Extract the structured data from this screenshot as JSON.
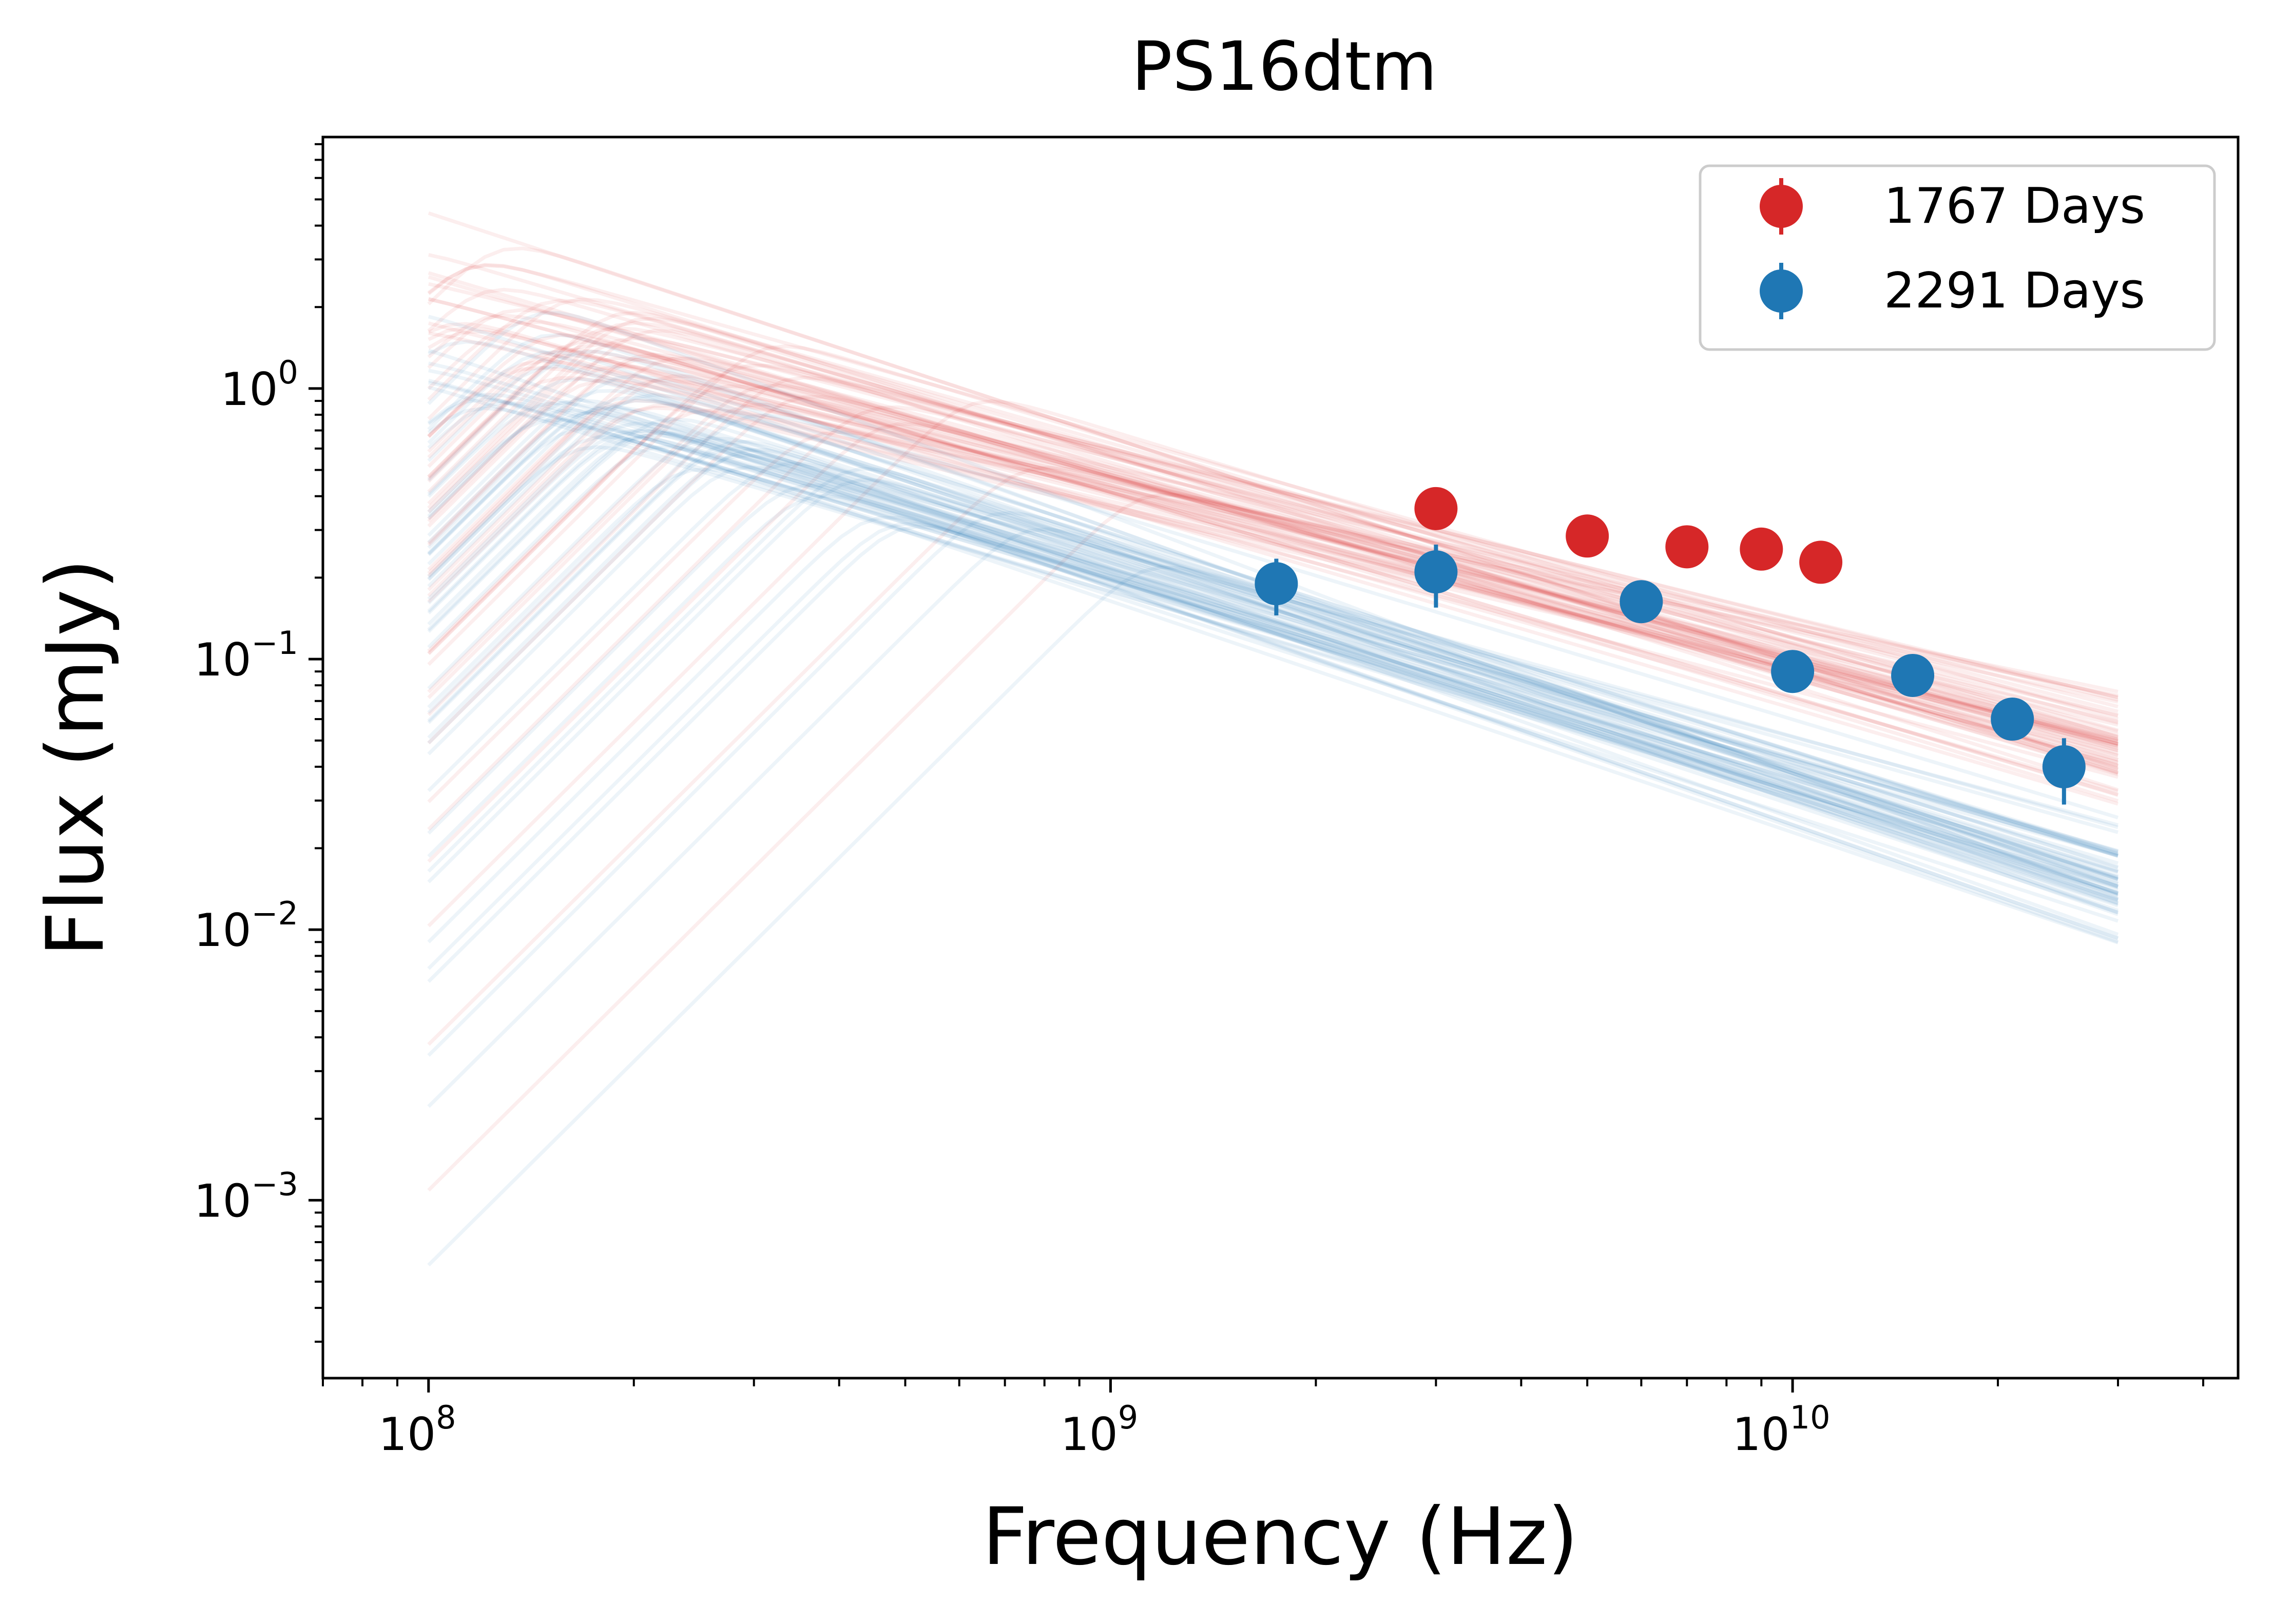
{
  "chart_data": {
    "type": "scatter",
    "title": "PS16dtm",
    "xlabel": "Frequency (Hz)",
    "ylabel": "Flux (mJy)",
    "xscale": "log",
    "yscale": "log",
    "xlim": [
      70000000,
      45000000000
    ],
    "ylim": [
      0.00022,
      8.5
    ],
    "x_ticks": [
      {
        "value": 100000000,
        "base": "10",
        "exp": "8"
      },
      {
        "value": 1000000000,
        "base": "10",
        "exp": "9"
      },
      {
        "value": 10000000000,
        "base": "10",
        "exp": "10"
      }
    ],
    "y_ticks": [
      {
        "value": 0.001,
        "base": "10",
        "exp": "−3"
      },
      {
        "value": 0.01,
        "base": "10",
        "exp": "−2"
      },
      {
        "value": 0.1,
        "base": "10",
        "exp": "−1"
      },
      {
        "value": 1,
        "base": "10",
        "exp": "0"
      }
    ],
    "legend_position": "top-right",
    "grid": false,
    "series": [
      {
        "name": "1767 Days",
        "color": "#d62728",
        "points": [
          {
            "x": 3000000000,
            "y": 0.36,
            "yerr": 0.05
          },
          {
            "x": 5000000000,
            "y": 0.285,
            "yerr": 0.025
          },
          {
            "x": 7000000000,
            "y": 0.26,
            "yerr": 0.02
          },
          {
            "x": 9000000000,
            "y": 0.255,
            "yerr": 0.02
          },
          {
            "x": 11000000000,
            "y": 0.228,
            "yerr": 0.02
          }
        ],
        "model_fit": {
          "peak_freq": 150000000,
          "peak_flux": 1.9,
          "thin_slope": -0.7,
          "thick_slope": 2.5,
          "opacity": 0.08
        }
      },
      {
        "name": "2291 Days",
        "color": "#1f77b4",
        "points": [
          {
            "x": 1750000000,
            "y": 0.19,
            "yerr": 0.045
          },
          {
            "x": 3000000000,
            "y": 0.21,
            "yerr": 0.055
          },
          {
            "x": 6000000000,
            "y": 0.163,
            "yerr": 0.015
          },
          {
            "x": 10000000000,
            "y": 0.09,
            "yerr": 0.01
          },
          {
            "x": 15000000000,
            "y": 0.087,
            "yerr": 0.01
          },
          {
            "x": 21000000000,
            "y": 0.06,
            "yerr": 0.007
          },
          {
            "x": 25000000000,
            "y": 0.04,
            "yerr": 0.011
          }
        ],
        "model_fit": {
          "peak_freq": 160000000,
          "peak_flux": 1.0,
          "thin_slope": -0.8,
          "thick_slope": 2.5,
          "opacity": 0.08
        }
      }
    ]
  }
}
